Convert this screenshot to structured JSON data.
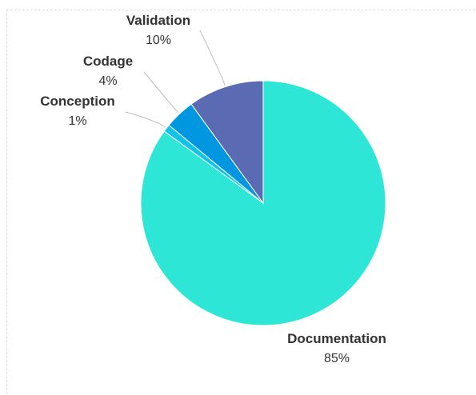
{
  "chart_data": {
    "type": "pie",
    "title": "",
    "start": "top, clockwise",
    "slices": [
      {
        "label": "Documentation",
        "value": 85,
        "value_label": "85%",
        "color": "#2ee6d6"
      },
      {
        "label": "Conception",
        "value": 1,
        "value_label": "1%",
        "color": "#12c2e9"
      },
      {
        "label": "Codage",
        "value": 4,
        "value_label": "4%",
        "color": "#0096e0"
      },
      {
        "label": "Validation",
        "value": 10,
        "value_label": "10%",
        "color": "#5b6bb3"
      }
    ],
    "legend": "none",
    "labels": "outside with leader lines"
  }
}
